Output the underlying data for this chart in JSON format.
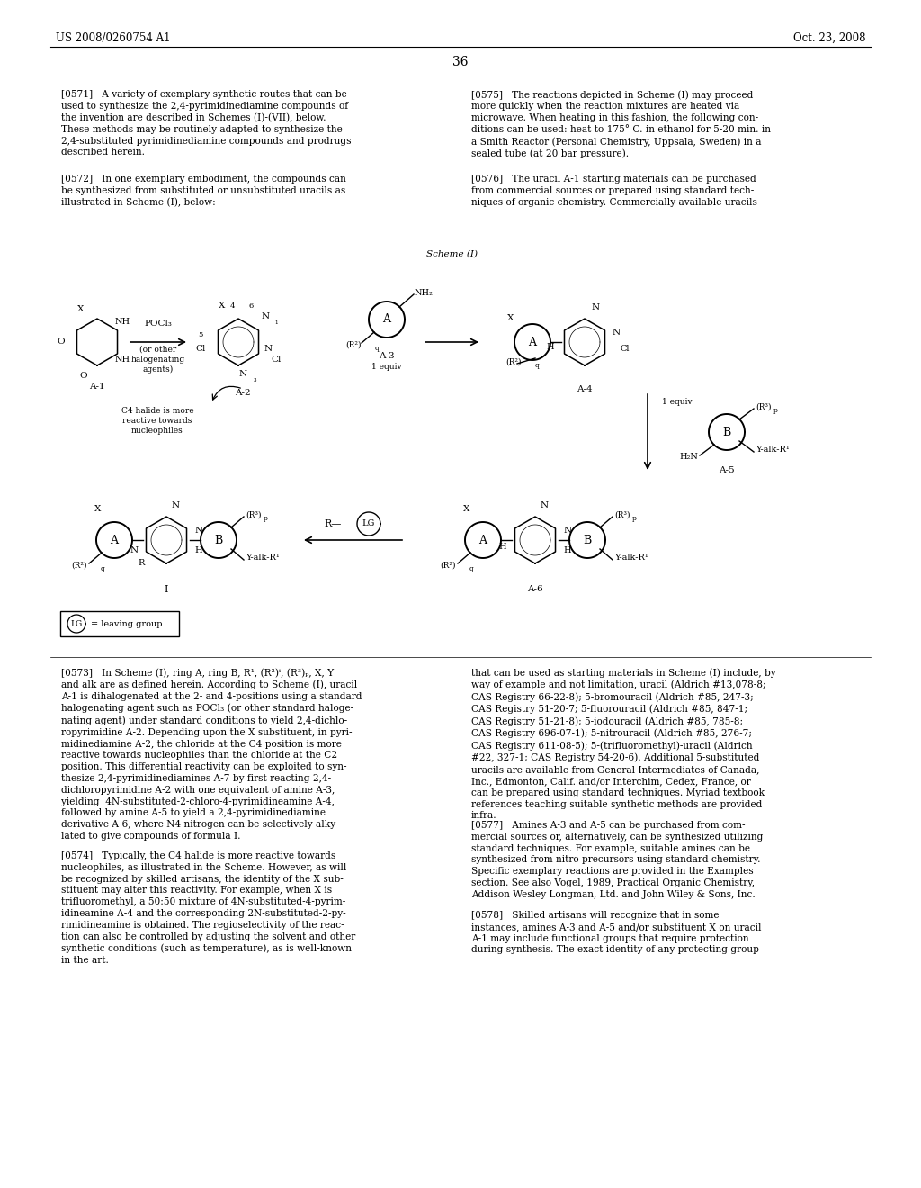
{
  "page_header_left": "US 2008/0260754 A1",
  "page_header_right": "Oct. 23, 2008",
  "page_number": "36",
  "background_color": "#ffffff",
  "text_color": "#000000",
  "scheme_label": "Scheme (I)"
}
